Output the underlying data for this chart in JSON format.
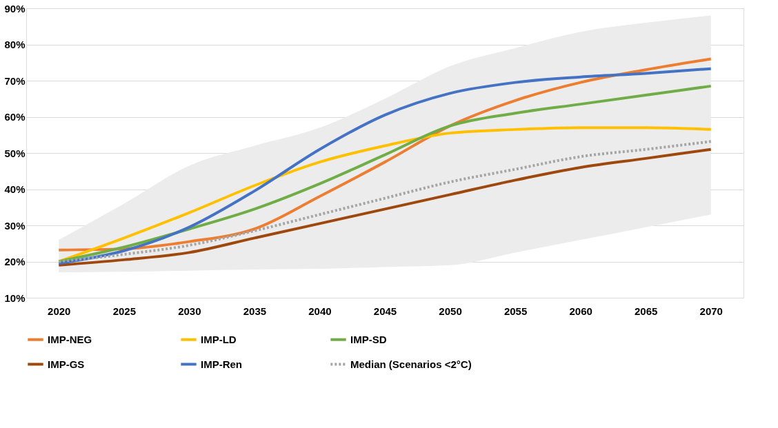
{
  "chart_data": {
    "type": "line",
    "categories": [
      "2020",
      "2025",
      "2030",
      "2035",
      "2040",
      "2045",
      "2050",
      "2055",
      "2060",
      "2065",
      "2070"
    ],
    "series": [
      {
        "name": "IMP-NEG",
        "color": "#ed7d31",
        "values": [
          23.2,
          23.5,
          25.5,
          29,
          38,
          47.5,
          57.5,
          64.5,
          69.5,
          73,
          76
        ]
      },
      {
        "name": "IMP-LD",
        "color": "#ffc000",
        "values": [
          20,
          26.5,
          33.5,
          41,
          47.5,
          52,
          55.5,
          56.5,
          57,
          57,
          56.5
        ]
      },
      {
        "name": "IMP-SD",
        "color": "#70ad47",
        "values": [
          20,
          24,
          29,
          34.5,
          41.5,
          49.5,
          57.5,
          61,
          63.5,
          66,
          68.5
        ]
      },
      {
        "name": "IMP-GS",
        "color": "#9e480e",
        "values": [
          19,
          20.5,
          22.5,
          26.5,
          30.5,
          34.5,
          38.5,
          42.5,
          46,
          48.5,
          51
        ]
      },
      {
        "name": "IMP-Ren",
        "color": "#4472c4",
        "values": [
          19.5,
          23,
          29.5,
          39.5,
          51,
          60.5,
          66.5,
          69.5,
          71,
          72,
          73.3
        ]
      },
      {
        "name": "Median (Scenarios <2°C)",
        "color": "#a5a5a5",
        "line_style": "dotted",
        "values": [
          20,
          22,
          24.5,
          28.5,
          33,
          37.5,
          42,
          45.5,
          49,
          51,
          53.2
        ],
        "lower": [
          17,
          17.2,
          17.5,
          17.8,
          18,
          18.5,
          19,
          22.5,
          26,
          29.5,
          33
        ],
        "upper": [
          26,
          36,
          46.5,
          52,
          57,
          65,
          74,
          79,
          83.5,
          86,
          88
        ]
      }
    ],
    "ylim": [
      10,
      90
    ],
    "yticks": [
      {
        "value": 10,
        "label": "10%"
      },
      {
        "value": 20,
        "label": "20%"
      },
      {
        "value": 30,
        "label": "30%"
      },
      {
        "value": 40,
        "label": "40%"
      },
      {
        "value": 50,
        "label": "50%"
      },
      {
        "value": 60,
        "label": "60%"
      },
      {
        "value": 70,
        "label": "70%"
      },
      {
        "value": 80,
        "label": "80%"
      },
      {
        "value": 90,
        "label": "90%"
      }
    ],
    "grid": "y",
    "legend": "bottom",
    "marker": "none",
    "line_style": "solid"
  }
}
